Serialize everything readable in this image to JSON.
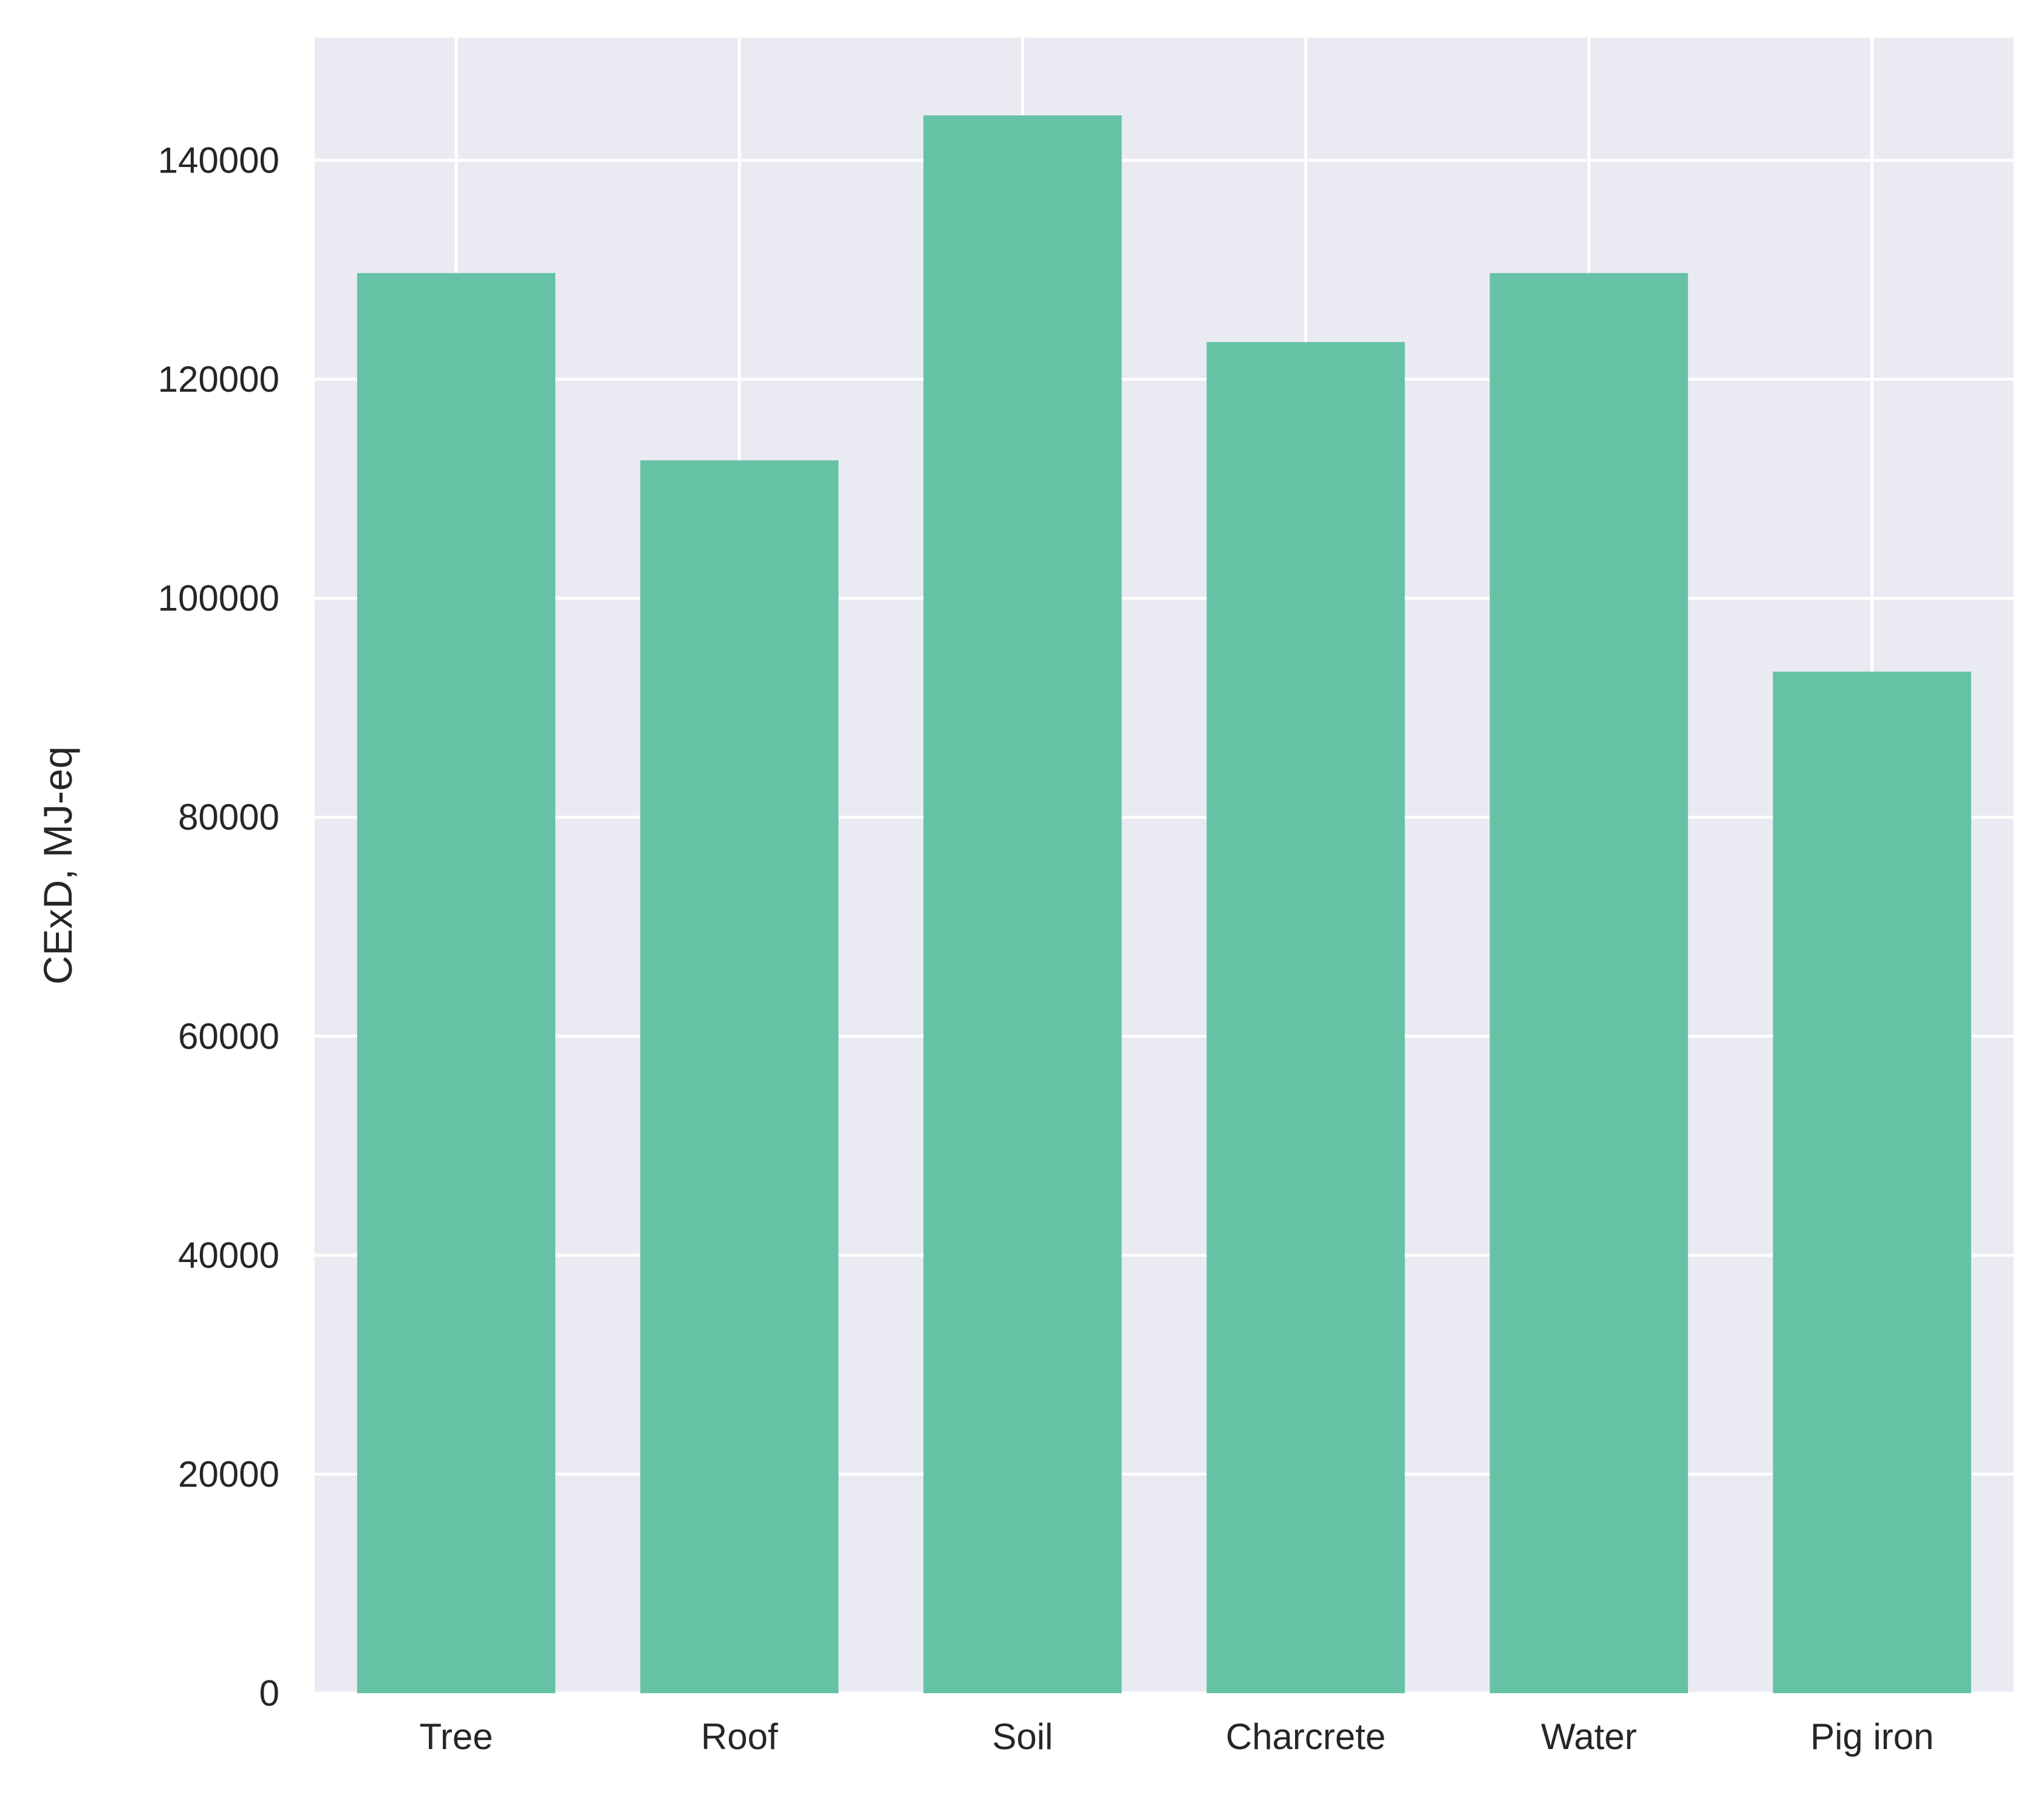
{
  "chart_data": {
    "type": "bar",
    "title": "",
    "xlabel": "",
    "ylabel": "CExD, MJ-eq",
    "categories": [
      "Tree",
      "Roof",
      "Soil",
      "Charcrete",
      "Water",
      "Pig iron"
    ],
    "values": [
      129700,
      112600,
      144100,
      123400,
      129700,
      93300
    ],
    "ylim": [
      0,
      151200
    ],
    "yticks": [
      0,
      20000,
      40000,
      60000,
      80000,
      100000,
      120000,
      140000
    ],
    "ytick_labels": [
      "0",
      "20000",
      "40000",
      "60000",
      "80000",
      "100000",
      "120000",
      "140000"
    ],
    "grid": true,
    "legend": "none",
    "colors": {
      "bar": "#66c2a5",
      "plot_background": "#eaeaf2",
      "grid": "#ffffff",
      "text": "#262626"
    }
  }
}
